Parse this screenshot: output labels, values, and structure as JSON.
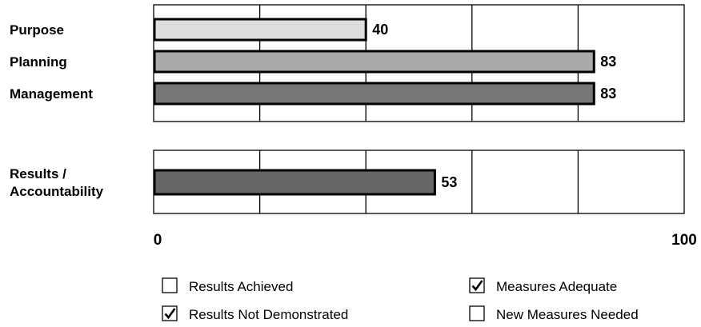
{
  "chart_data": {
    "type": "bar",
    "orientation": "horizontal",
    "xlim": [
      0,
      100
    ],
    "x_ticks": [
      "0",
      "100"
    ],
    "grid": true,
    "groups": [
      {
        "name": "",
        "categories": [
          "Purpose",
          "Planning",
          "Management"
        ],
        "values": [
          40,
          83,
          83
        ],
        "colors": [
          "#dddddd",
          "#aaaaaa",
          "#777777"
        ]
      },
      {
        "name": "",
        "categories": [
          "Results / Accountability"
        ],
        "category_lines": [
          [
            "Results /",
            "Accountability"
          ]
        ],
        "values": [
          53
        ],
        "colors": [
          "#666666"
        ]
      }
    ]
  },
  "legend": {
    "items": [
      {
        "label": "Results Achieved",
        "checked": false
      },
      {
        "label": "Measures Adequate",
        "checked": true
      },
      {
        "label": "Results Not Demonstrated",
        "checked": true
      },
      {
        "label": "New Measures Needed",
        "checked": false
      }
    ]
  }
}
